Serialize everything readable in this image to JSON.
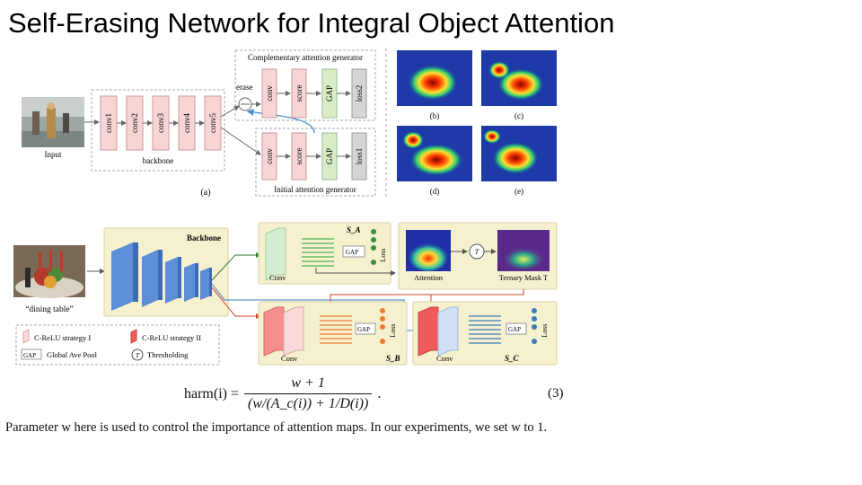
{
  "slide": {
    "title": "Self-Erasing Network for Integral Object Attention"
  },
  "figure_a": {
    "input_label": "Input",
    "backbone_label": "backbone",
    "conv_layers": [
      "conv1",
      "conv2",
      "conv3",
      "conv4",
      "conv5"
    ],
    "erase_label": "erase",
    "complementary_title": "Complementary attention generator",
    "complementary_blocks": [
      "conv",
      "score",
      "GAP",
      "loss2"
    ],
    "initial_title": "Initial attention generator",
    "initial_blocks": [
      "conv",
      "score",
      "GAP",
      "loss1"
    ],
    "caption": "(a)",
    "heatmap_captions": [
      "(b)",
      "(c)",
      "(d)",
      "(e)"
    ]
  },
  "figure_b": {
    "image_caption": "“dining table”",
    "backbone_label": "Backbone",
    "sa_label": "S_A",
    "sb_label": "S_B",
    "sc_label": "S_C",
    "conv_label": "Conv",
    "gap_label": "GAP",
    "loss_label": "Loss",
    "attention_label": "Attention",
    "threshold_symbol": "T",
    "ternary_label": "Ternary Mask T",
    "legend": {
      "crelu1": "C-ReLU strategy I",
      "crelu2": "C-ReLU strategy II",
      "gap_icon": "GAP",
      "gap": "Global Ave Pool",
      "threshold_icon": "T",
      "thresholding": "Thresholding"
    }
  },
  "equation": {
    "lhs": "harm(i) =",
    "numerator": "w + 1",
    "denominator": "(w/(A_c(i)) + 1/D(i))",
    "number": "(3)"
  },
  "paragraph": "Parameter w here is used to control the importance of attention maps. In our experiments, we set w to 1."
}
